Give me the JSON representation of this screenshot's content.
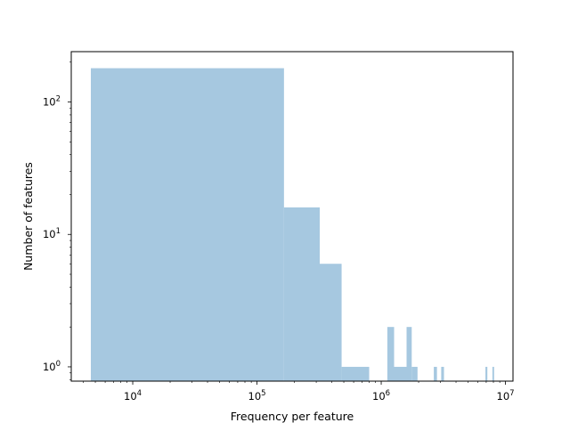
{
  "chart_data": {
    "type": "bar",
    "title": "",
    "xlabel": "Frequency per feature",
    "ylabel": "Number of features",
    "x_scale": "log",
    "y_scale": "log",
    "xlim": [
      3200,
      11500000
    ],
    "ylim": [
      0.78,
      240
    ],
    "bar_color": "#a6c8e0",
    "bins": [
      {
        "x0": 4600,
        "x1": 165000,
        "value": 180
      },
      {
        "x0": 165000,
        "x1": 320000,
        "value": 16
      },
      {
        "x0": 320000,
        "x1": 480000,
        "value": 6
      },
      {
        "x0": 480000,
        "x1": 800000,
        "value": 1
      },
      {
        "x0": 1120000,
        "x1": 1270000,
        "value": 2
      },
      {
        "x0": 1270000,
        "x1": 1600000,
        "value": 1
      },
      {
        "x0": 1600000,
        "x1": 1760000,
        "value": 2
      },
      {
        "x0": 1760000,
        "x1": 1960000,
        "value": 1
      },
      {
        "x0": 2650000,
        "x1": 2810000,
        "value": 1
      },
      {
        "x0": 3040000,
        "x1": 3200000,
        "value": 1
      },
      {
        "x0": 6900000,
        "x1": 7150000,
        "value": 1
      },
      {
        "x0": 7850000,
        "x1": 8100000,
        "value": 1
      }
    ],
    "x_major_ticks": [
      {
        "value": 10000,
        "base": "10",
        "exp": "4"
      },
      {
        "value": 100000,
        "base": "10",
        "exp": "5"
      },
      {
        "value": 1000000,
        "base": "10",
        "exp": "6"
      },
      {
        "value": 10000000,
        "base": "10",
        "exp": "7"
      }
    ],
    "y_major_ticks": [
      {
        "value": 1,
        "base": "10",
        "exp": "0"
      },
      {
        "value": 10,
        "base": "10",
        "exp": "1"
      },
      {
        "value": 100,
        "base": "10",
        "exp": "2"
      }
    ],
    "grid": false,
    "legend": "none"
  }
}
